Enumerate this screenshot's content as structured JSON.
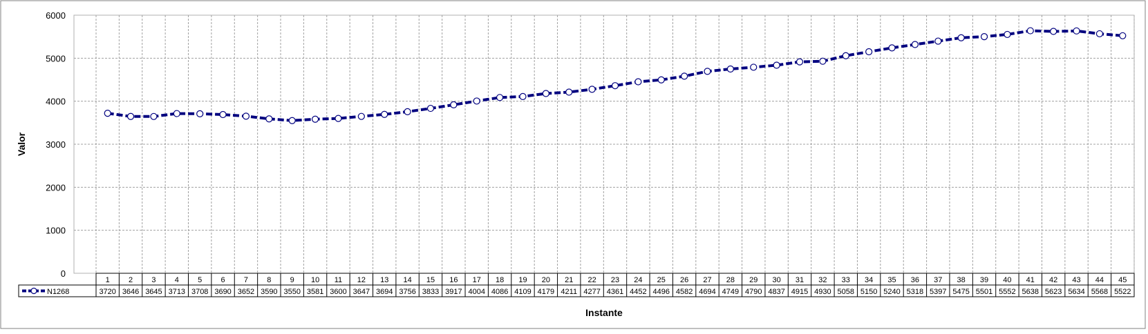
{
  "chart_data": {
    "type": "line",
    "title": "",
    "xlabel": "Instante",
    "ylabel": "Valor",
    "ylim": [
      0,
      6000
    ],
    "yticks": [
      0,
      1000,
      2000,
      3000,
      4000,
      5000,
      6000
    ],
    "grid": true,
    "legend": "data-table",
    "x": [
      "1",
      "2",
      "3",
      "4",
      "5",
      "6",
      "7",
      "8",
      "9",
      "10",
      "11",
      "12",
      "13",
      "14",
      "15",
      "16",
      "17",
      "18",
      "19",
      "20",
      "21",
      "22",
      "23",
      "24",
      "25",
      "26",
      "27",
      "28",
      "29",
      "30",
      "31",
      "32",
      "33",
      "34",
      "35",
      "36",
      "37",
      "38",
      "39",
      "40",
      "41",
      "42",
      "43",
      "44",
      "45"
    ],
    "series": [
      {
        "name": "N1268",
        "color": "#00007f",
        "values": [
          3720,
          3646,
          3645,
          3713,
          3708,
          3690,
          3652,
          3590,
          3550,
          3581,
          3600,
          3647,
          3694,
          3756,
          3833,
          3917,
          4004,
          4086,
          4109,
          4179,
          4211,
          4277,
          4361,
          4452,
          4496,
          4582,
          4694,
          4749,
          4790,
          4837,
          4915,
          4930,
          5058,
          5150,
          5240,
          5318,
          5397,
          5475,
          5501,
          5552,
          5638,
          5623,
          5634,
          5568,
          5522
        ]
      }
    ]
  }
}
